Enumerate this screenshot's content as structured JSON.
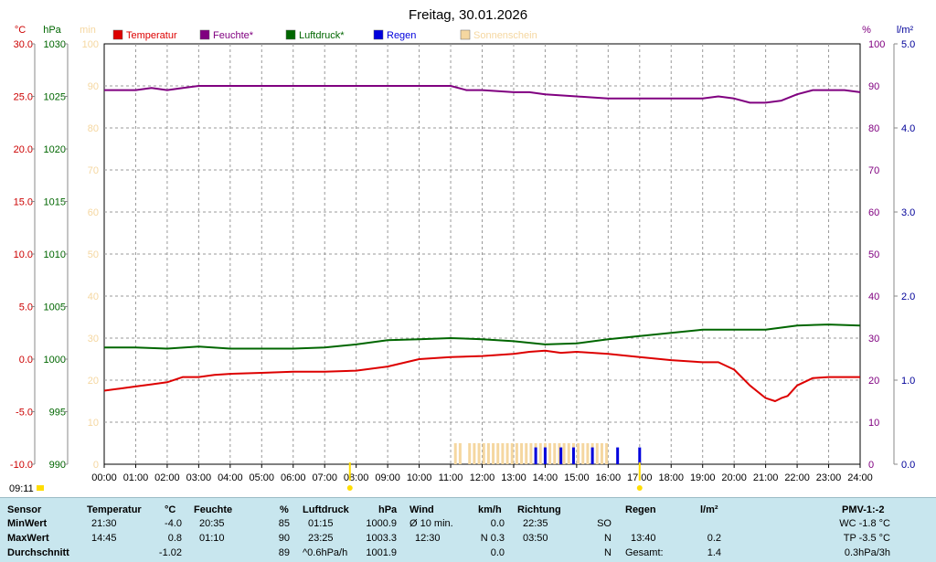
{
  "chart_data": {
    "type": "line",
    "title": "Freitag, 30.01.2026",
    "x_ticks": [
      "00:00",
      "01:00",
      "02:00",
      "03:00",
      "04:00",
      "05:00",
      "06:00",
      "07:00",
      "08:00",
      "09:00",
      "10:00",
      "11:00",
      "12:00",
      "13:00",
      "14:00",
      "15:00",
      "16:00",
      "17:00",
      "18:00",
      "19:00",
      "20:00",
      "21:00",
      "22:00",
      "23:00",
      "24:00"
    ],
    "x_unit": "hours",
    "axes": {
      "temperature": {
        "unit": "°C",
        "range": [
          -10,
          30
        ],
        "ticks": [
          "-10.0",
          "-5.0",
          "0.0",
          "5.0",
          "10.0",
          "15.0",
          "20.0",
          "25.0",
          "30.0"
        ],
        "color": "#cc0000"
      },
      "pressure": {
        "unit": "hPa",
        "range": [
          990,
          1030
        ],
        "ticks": [
          "990",
          "995",
          "1000",
          "1005",
          "1010",
          "1015",
          "1020",
          "1025",
          "1030"
        ],
        "color": "#006600"
      },
      "sunshine": {
        "unit": "min",
        "range": [
          0,
          100
        ],
        "ticks": [
          "0",
          "10",
          "20",
          "30",
          "40",
          "50",
          "60",
          "70",
          "80",
          "90",
          "100"
        ],
        "color": "#f5d7a0"
      },
      "humidity": {
        "unit": "%",
        "range": [
          0,
          100
        ],
        "ticks": [
          "0",
          "10",
          "20",
          "30",
          "40",
          "50",
          "60",
          "70",
          "80",
          "90",
          "100"
        ],
        "color": "#800080"
      },
      "rain": {
        "unit": "l/m²",
        "range": [
          0,
          5
        ],
        "ticks": [
          "0.0",
          "1.0",
          "2.0",
          "3.0",
          "4.0",
          "5.0"
        ],
        "color": "#000099"
      }
    },
    "legend": [
      {
        "label": "Temperatur",
        "color": "#dd0000"
      },
      {
        "label": "Feuchte*",
        "color": "#800080"
      },
      {
        "label": "Luftdruck*",
        "color": "#006600"
      },
      {
        "label": "Regen",
        "color": "#0000dd"
      },
      {
        "label": "Sonnenschein",
        "color": "#f5d7a0"
      }
    ],
    "legend_position": "top",
    "grid": true,
    "series": [
      {
        "name": "Temperatur",
        "axis": "temperature",
        "color": "#dd0000",
        "x": [
          0,
          0.5,
          1,
          1.5,
          2,
          2.5,
          3,
          3.5,
          4,
          5,
          6,
          7,
          8,
          8.5,
          9,
          10,
          11,
          12,
          13,
          13.5,
          14,
          14.5,
          15,
          16,
          17,
          18,
          19,
          19.5,
          20,
          20.5,
          21,
          21.3,
          21.5,
          21.7,
          22,
          22.5,
          23,
          24
        ],
        "y": [
          -3.0,
          -2.8,
          -2.6,
          -2.4,
          -2.2,
          -1.7,
          -1.7,
          -1.5,
          -1.4,
          -1.3,
          -1.2,
          -1.2,
          -1.1,
          -0.9,
          -0.7,
          0.0,
          0.2,
          0.3,
          0.5,
          0.7,
          0.8,
          0.6,
          0.7,
          0.5,
          0.2,
          -0.1,
          -0.3,
          -0.3,
          -1.0,
          -2.5,
          -3.7,
          -4.0,
          -3.7,
          -3.5,
          -2.5,
          -1.8,
          -1.7,
          -1.7
        ]
      },
      {
        "name": "Feuchte*",
        "axis": "humidity",
        "color": "#800080",
        "x": [
          0,
          1,
          1.5,
          2,
          2.5,
          3,
          4,
          5,
          6,
          7,
          8,
          9,
          10,
          11,
          11.5,
          12,
          13,
          13.5,
          14,
          15,
          16,
          17,
          18,
          19,
          19.5,
          20,
          20.5,
          21,
          21.5,
          22,
          22.5,
          23,
          23.5,
          24
        ],
        "y": [
          89,
          89,
          89.5,
          89,
          89.5,
          90,
          90,
          90,
          90,
          90,
          90,
          90,
          90,
          90,
          89,
          89,
          88.5,
          88.5,
          88,
          87.5,
          87,
          87,
          87,
          87,
          87.5,
          87,
          86,
          86,
          86.5,
          88,
          89,
          89,
          89,
          88.5
        ]
      },
      {
        "name": "Luftdruck*",
        "axis": "pressure",
        "color": "#006600",
        "x": [
          0,
          1,
          2,
          3,
          4,
          5,
          6,
          7,
          8,
          9,
          10,
          11,
          12,
          13,
          14,
          15,
          16,
          17,
          18,
          19,
          20,
          21,
          22,
          23,
          24
        ],
        "y": [
          1001.1,
          1001.1,
          1001.0,
          1001.2,
          1001.0,
          1001.0,
          1001.0,
          1001.1,
          1001.4,
          1001.8,
          1001.9,
          1002.0,
          1001.9,
          1001.7,
          1001.4,
          1001.5,
          1001.9,
          1002.2,
          1002.5,
          1002.8,
          1002.8,
          1002.8,
          1003.2,
          1003.3,
          1003.2
        ]
      }
    ],
    "rain_bars": {
      "axis": "rain",
      "color": "#0000dd",
      "x": [
        13.7,
        14.0,
        14.5,
        14.9,
        15.5,
        16.3,
        17.0
      ],
      "y": [
        0.2,
        0.2,
        0.2,
        0.2,
        0.2,
        0.2,
        0.2
      ]
    },
    "sunshine_bars": {
      "axis": "sunshine",
      "color": "#f5d7a0",
      "x": [
        11.15,
        11.3,
        11.6,
        11.75,
        11.9,
        12.05,
        12.2,
        12.35,
        12.5,
        12.65,
        12.8,
        12.95,
        13.1,
        13.25,
        13.4,
        13.55,
        13.7,
        13.85,
        14.0,
        14.15,
        14.3,
        14.45,
        14.6,
        14.75,
        14.9,
        15.05,
        15.2,
        15.35,
        15.5,
        15.65,
        15.8,
        15.95
      ],
      "y": [
        5,
        5,
        5,
        5,
        5,
        5,
        5,
        5,
        5,
        5,
        5,
        5,
        5,
        5,
        5,
        5,
        5,
        5,
        5,
        5,
        5,
        5,
        5,
        5,
        5,
        5,
        5,
        5,
        5,
        5,
        5,
        5
      ]
    },
    "markers": [
      {
        "x": 7.8,
        "color": "#ffdd00"
      },
      {
        "x": 17.0,
        "color": "#ffdd00"
      }
    ],
    "corner_time": "09:11"
  },
  "stats": {
    "headers": [
      "Sensor",
      "Temperatur",
      "°C",
      "Feuchte",
      "%",
      "Luftdruck",
      "hPa",
      "Wind",
      "km/h",
      "Richtung",
      "Regen",
      "l/m²",
      "PMV-1:-2"
    ],
    "rows": [
      {
        "label": "MinWert",
        "temp_time": "21:30",
        "temp_val": "-4.0",
        "hum_time": "20:35",
        "hum_val": "85",
        "press_time": "01:15",
        "press_val": "1000.9",
        "wind_label": "Ø 10 min.",
        "wind_val": "0.0",
        "dir_time": "22:35",
        "dir_val": "SO",
        "rain_time": "",
        "rain_val": "",
        "pmv": "WC -1.8 °C"
      },
      {
        "label": "MaxWert",
        "temp_time": "14:45",
        "temp_val": "0.8",
        "hum_time": "01:10",
        "hum_val": "90",
        "press_time": "23:25",
        "press_val": "1003.3",
        "wind_label": "12:30",
        "wind_val": "N 0.3",
        "dir_time": "03:50",
        "dir_val": "N",
        "rain_time": "13:40",
        "rain_val": "0.2",
        "pmv": "TP -3.5 °C"
      },
      {
        "label": "Durchschnitt",
        "temp_time": "",
        "temp_val": "-1.02",
        "hum_time": "",
        "hum_val": "89",
        "press_time": "^0.6hPa/h",
        "press_val": "1001.9",
        "wind_label": "",
        "wind_val": "0.0",
        "dir_time": "",
        "dir_val": "N",
        "rain_time": "Gesamt:",
        "rain_val": "1.4",
        "pmv": "0.3hPa/3h"
      }
    ]
  }
}
